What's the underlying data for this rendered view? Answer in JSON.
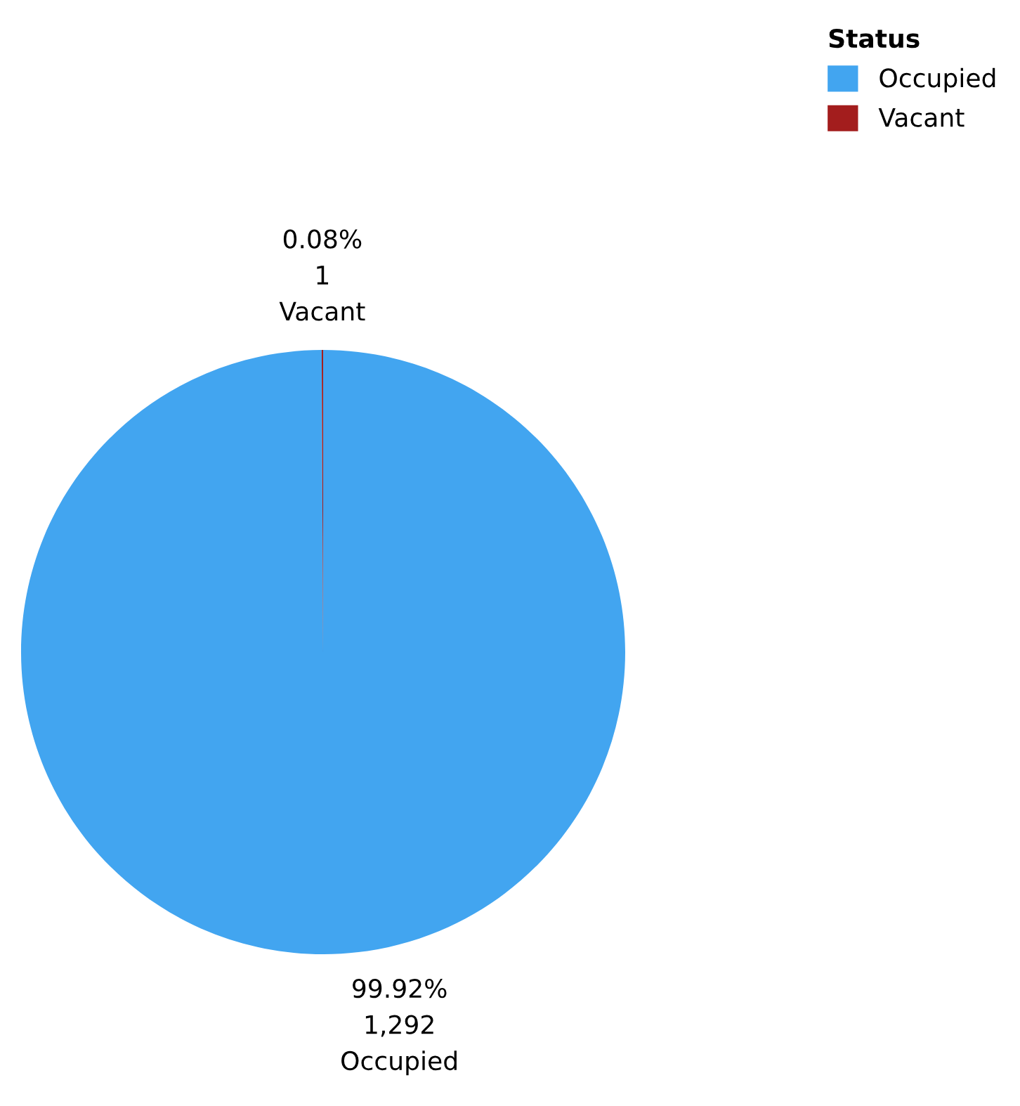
{
  "chart_data": {
    "type": "pie",
    "legend_title": "Status",
    "legend": "top right",
    "categories": [
      "Occupied",
      "Vacant"
    ],
    "values": [
      1292,
      1
    ],
    "colors": [
      "#42a5f0",
      "#a31d1d"
    ],
    "value_labels": [
      "99.92%\n1,292",
      "0.08%\n1"
    ]
  }
}
